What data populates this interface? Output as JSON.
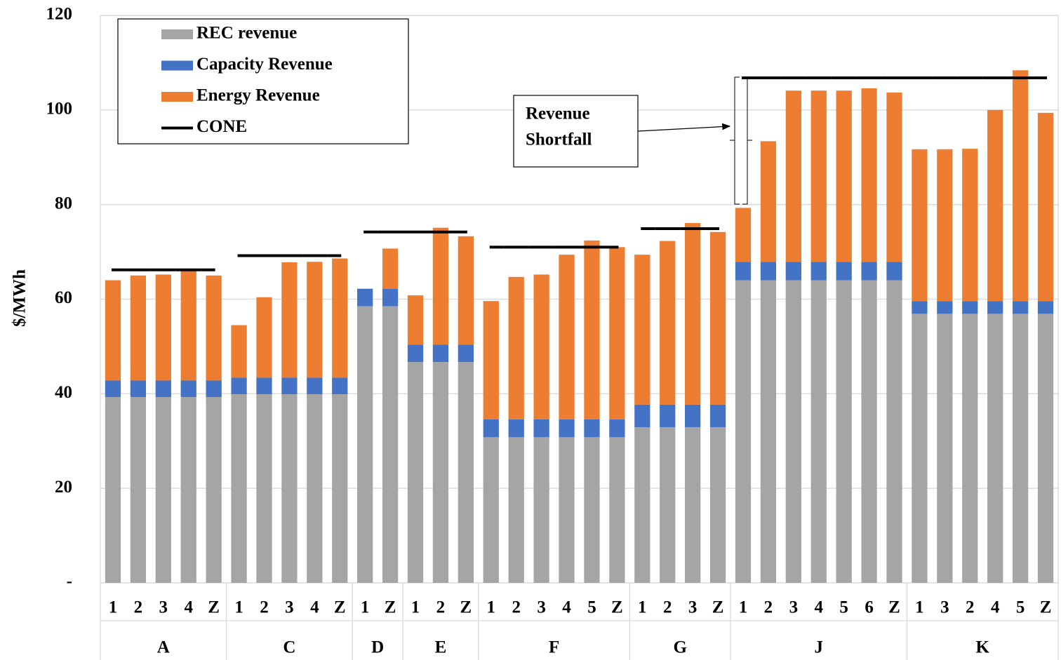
{
  "chart_data": {
    "type": "bar",
    "stacked": true,
    "y_label": "$/MWh",
    "annotation": [
      "Revenue",
      "Shortfall"
    ],
    "groups": [
      {
        "name": "A",
        "categories": [
          "1",
          "2",
          "3",
          "4",
          "Z"
        ]
      },
      {
        "name": "C",
        "categories": [
          "1",
          "2",
          "3",
          "4",
          "Z"
        ]
      },
      {
        "name": "D",
        "categories": [
          "1",
          "Z"
        ]
      },
      {
        "name": "E",
        "categories": [
          "1",
          "2",
          "Z"
        ]
      },
      {
        "name": "F",
        "categories": [
          "1",
          "2",
          "3",
          "4",
          "5",
          "Z"
        ]
      },
      {
        "name": "G",
        "categories": [
          "1",
          "2",
          "3",
          "Z"
        ]
      },
      {
        "name": "J",
        "categories": [
          "1",
          "2",
          "3",
          "4",
          "5",
          "6",
          "Z"
        ]
      },
      {
        "name": "K",
        "categories": [
          "1",
          "3",
          "2",
          "4",
          "5",
          "Z"
        ]
      }
    ],
    "series": [
      {
        "name": "REC revenue",
        "color": "#a5a5a5",
        "values": [
          39.3,
          39.3,
          39.3,
          39.3,
          39.3,
          39.9,
          39.9,
          39.9,
          39.9,
          39.9,
          58.5,
          58.5,
          46.7,
          46.7,
          46.7,
          30.8,
          30.8,
          30.8,
          30.8,
          30.8,
          30.8,
          32.9,
          32.9,
          32.9,
          32.9,
          64,
          64,
          64,
          64,
          64,
          64,
          64,
          56.9,
          56.9,
          56.9,
          56.9,
          56.9,
          56.9
        ]
      },
      {
        "name": "Capacity Revenue",
        "color": "#4472c4",
        "values": [
          3.5,
          3.5,
          3.5,
          3.5,
          3.5,
          3.5,
          3.5,
          3.5,
          3.5,
          3.5,
          3.7,
          3.7,
          3.7,
          3.7,
          3.7,
          3.8,
          3.8,
          3.8,
          3.8,
          3.8,
          3.8,
          4.8,
          4.8,
          4.8,
          4.8,
          3.9,
          3.9,
          3.9,
          3.9,
          3.9,
          3.9,
          3.9,
          2.7,
          2.7,
          2.7,
          2.7,
          2.7,
          2.7
        ]
      },
      {
        "name": "Energy Revenue",
        "color": "#ed7d31",
        "values": [
          21.2,
          22.2,
          22.4,
          23.2,
          22.2,
          11.1,
          17,
          24.4,
          24.5,
          25.2,
          0,
          8.5,
          10.4,
          24.7,
          22.9,
          25,
          30.1,
          30.6,
          34.8,
          37.8,
          36.4,
          31.7,
          34.6,
          38.4,
          36.5,
          11.4,
          25.5,
          36.2,
          36.2,
          36.2,
          36.7,
          35.8,
          32.1,
          32.1,
          32.2,
          40.4,
          48.8,
          39.8
        ]
      },
      {
        "name": "CONE",
        "color": "#000000",
        "type": "line",
        "values": [
          66.2,
          66.2,
          66.2,
          66.2,
          66.2,
          69.2,
          69.2,
          69.2,
          69.2,
          69.2,
          74.2,
          74.2,
          74.2,
          74.2,
          74.2,
          71,
          71,
          71,
          71,
          71,
          71,
          74.9,
          74.9,
          74.9,
          74.9,
          106.8,
          106.8,
          106.8,
          106.8,
          106.8,
          106.8,
          106.8,
          106.8,
          106.8,
          106.8,
          106.8,
          106.8,
          106.8
        ]
      }
    ],
    "ylim": [
      0,
      120
    ],
    "yticks": [
      {
        "value": 0,
        "label": "-"
      },
      20,
      40,
      60,
      80,
      100,
      120
    ],
    "grid": true
  }
}
